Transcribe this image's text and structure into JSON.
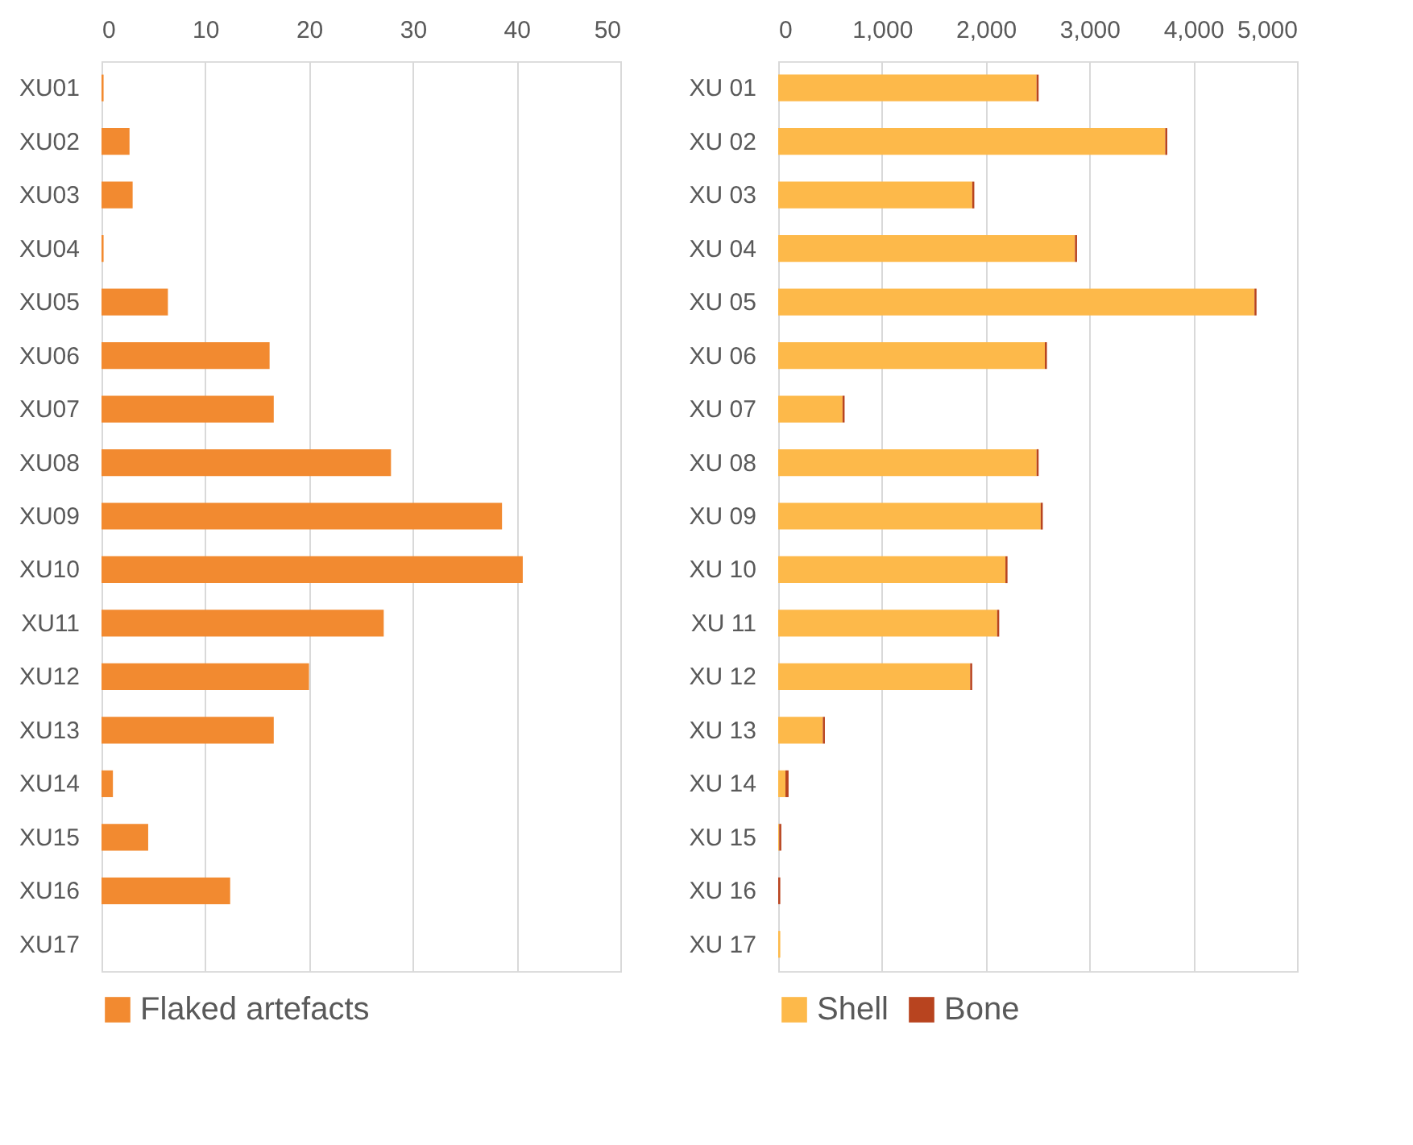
{
  "chart_data": [
    {
      "type": "bar",
      "orientation": "horizontal",
      "categories": [
        "XU01",
        "XU02",
        "XU03",
        "XU04",
        "XU05",
        "XU06",
        "XU07",
        "XU08",
        "XU09",
        "XU10",
        "XU11",
        "XU12",
        "XU13",
        "XU14",
        "XU15",
        "XU16",
        "XU17"
      ],
      "series": [
        {
          "name": "Flaked artefacts",
          "color": "#f28a30",
          "values": [
            0.2,
            2.7,
            3.0,
            0.2,
            6.4,
            16.2,
            16.6,
            27.9,
            38.6,
            40.6,
            27.2,
            20.0,
            16.6,
            1.1,
            4.5,
            12.4,
            0
          ]
        }
      ],
      "xlim": [
        0,
        50
      ],
      "xticks": [
        0,
        10,
        20,
        30,
        40,
        50
      ],
      "grid": "x",
      "legend": "bottom"
    },
    {
      "type": "bar",
      "orientation": "horizontal",
      "stacked": true,
      "categories": [
        "XU 01",
        "XU 02",
        "XU 03",
        "XU 04",
        "XU 05",
        "XU 06",
        "XU 07",
        "XU 08",
        "XU 09",
        "XU 10",
        "XU 11",
        "XU 12",
        "XU 13",
        "XU 14",
        "XU 15",
        "XU 16",
        "XU 17"
      ],
      "series": [
        {
          "name": "Shell",
          "color": "#fdb94a",
          "values": [
            2490,
            3730,
            1870,
            2860,
            4590,
            2570,
            620,
            2490,
            2530,
            2190,
            2110,
            1850,
            430,
            70,
            10,
            0,
            20
          ]
        },
        {
          "name": "Bone",
          "color": "#b8441f",
          "values": [
            20,
            20,
            20,
            20,
            20,
            20,
            20,
            20,
            20,
            20,
            20,
            20,
            20,
            30,
            20,
            20,
            0
          ]
        }
      ],
      "xlim": [
        0,
        5000
      ],
      "xticks": [
        0,
        {
          "value": 1000,
          "label": "1,000"
        },
        {
          "value": 2000,
          "label": "2,000"
        },
        {
          "value": 3000,
          "label": "3,000"
        },
        {
          "value": 4000,
          "label": "4,000"
        },
        {
          "value": 5000,
          "label": "5,000"
        }
      ],
      "grid": "x",
      "legend": "bottom"
    }
  ]
}
